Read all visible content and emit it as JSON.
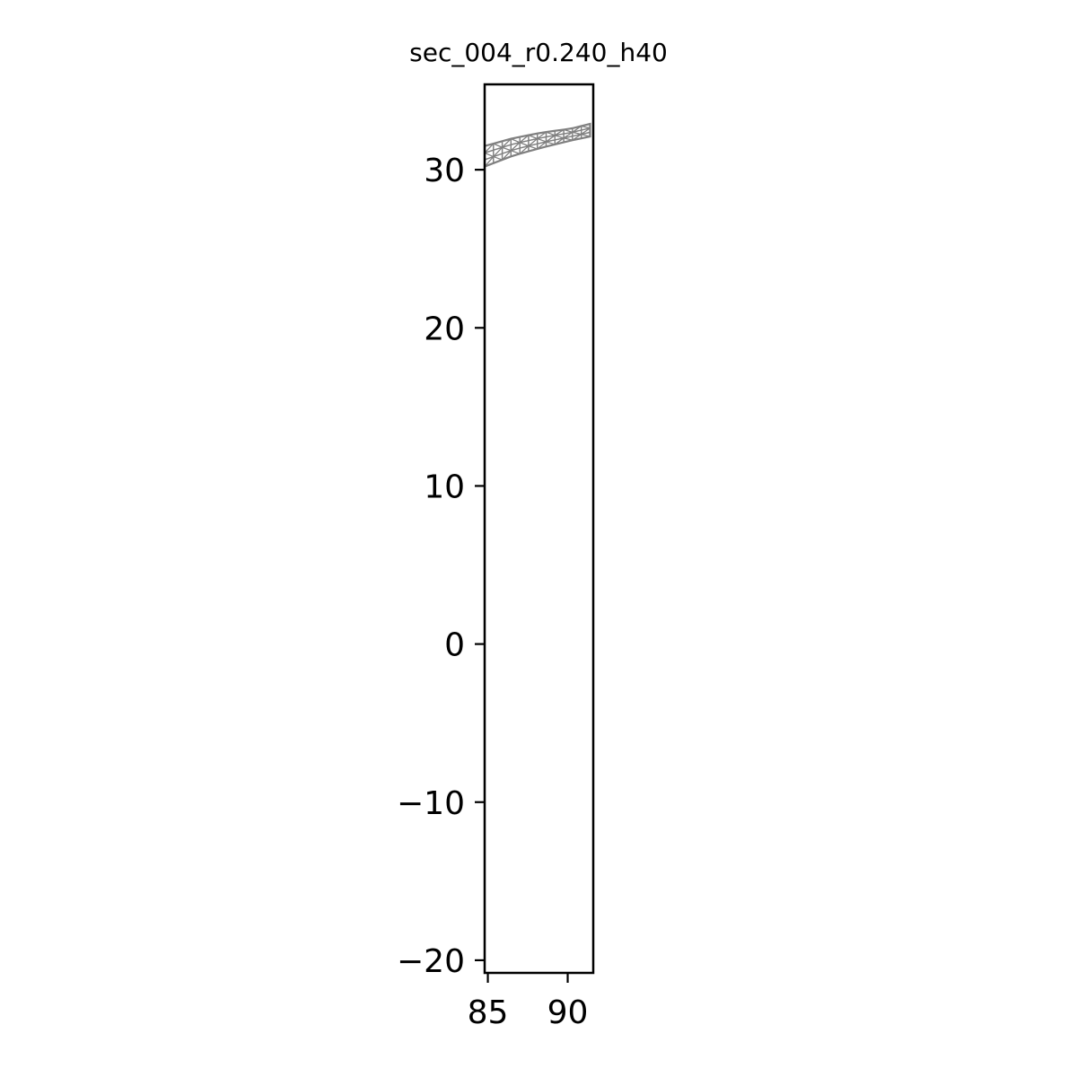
{
  "chart_data": {
    "type": "mesh",
    "title": "sec_004_r0.240_h40",
    "xlabel": "",
    "ylabel": "",
    "xlim": [
      84.8,
      91.6
    ],
    "ylim": [
      -20.8,
      35.4
    ],
    "xticks": [
      85,
      90
    ],
    "yticks": [
      -20,
      -10,
      0,
      10,
      20,
      30
    ],
    "grid": false,
    "legend": "none",
    "mesh": {
      "color": "#808080",
      "x_start": 84.8,
      "x_end": 91.4,
      "columns": 12,
      "rows": 3,
      "lower_edge": [
        [
          84.8,
          30.2
        ],
        [
          86.6,
          30.9
        ],
        [
          88.4,
          31.4
        ],
        [
          90.2,
          31.85
        ],
        [
          91.4,
          32.1
        ]
      ],
      "upper_edge": [
        [
          84.8,
          31.5
        ],
        [
          86.6,
          32.0
        ],
        [
          88.4,
          32.35
        ],
        [
          90.2,
          32.6
        ],
        [
          91.4,
          32.9
        ]
      ]
    }
  }
}
